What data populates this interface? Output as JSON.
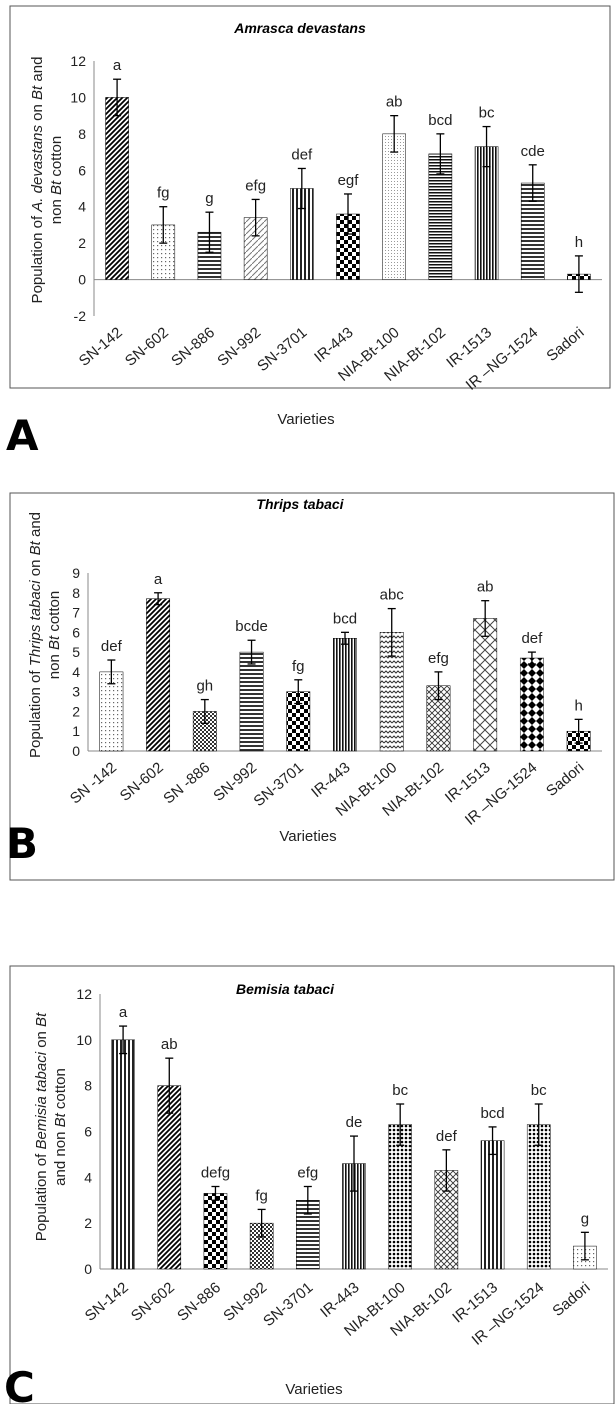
{
  "chart_data": [
    {
      "type": "bar",
      "panel": "A",
      "title": "Amrasca devastans",
      "ylabel_parts": [
        {
          "text": "Population of ",
          "italic": false
        },
        {
          "text": "A. devastans",
          "italic": true
        },
        {
          "text": " on ",
          "italic": false
        },
        {
          "text": "Bt",
          "italic": true
        },
        {
          "text": " and",
          "italic": false
        }
      ],
      "ylabel_parts2": [
        {
          "text": "non ",
          "italic": false
        },
        {
          "text": "Bt",
          "italic": true
        },
        {
          "text": " cotton",
          "italic": false
        }
      ],
      "xlabel": "Varieties",
      "ylim": [
        -2,
        12
      ],
      "yticks": [
        -2,
        0,
        2,
        4,
        6,
        8,
        10,
        12
      ],
      "categories": [
        "SN-142",
        "SN-602",
        "SN-886",
        "SN-992",
        "SN-3701",
        "IR-443",
        "NIA-Bt-100",
        "NIA-Bt-102",
        "IR-1513",
        "IR –NG-1524",
        "Sadori"
      ],
      "values": [
        10.0,
        3.0,
        2.6,
        3.4,
        5.0,
        3.6,
        8.0,
        6.9,
        7.3,
        5.3,
        0.3
      ],
      "errors": [
        1.0,
        1.0,
        1.1,
        1.0,
        1.1,
        1.1,
        1.0,
        1.1,
        1.1,
        1.0,
        1.0
      ],
      "letters": [
        "a",
        "fg",
        "g",
        "efg",
        "def",
        "egf",
        "ab",
        "bcd",
        "bc",
        "cde",
        "h"
      ],
      "patterns": [
        "diag-dense",
        "dots",
        "hlines",
        "diag-light",
        "vlines",
        "checker",
        "dots-fine",
        "hlines-dense",
        "vlines-dense",
        "hlines",
        "checker"
      ],
      "grid": false,
      "legend": "none"
    },
    {
      "type": "bar",
      "panel": "B",
      "title": "Thrips tabaci",
      "ylabel_parts": [
        {
          "text": "Population of ",
          "italic": false
        },
        {
          "text": "Thrips tabaci",
          "italic": true
        },
        {
          "text": " on ",
          "italic": false
        },
        {
          "text": "Bt",
          "italic": true
        },
        {
          "text": " and",
          "italic": false
        }
      ],
      "ylabel_parts2": [
        {
          "text": "non ",
          "italic": false
        },
        {
          "text": "Bt",
          "italic": true
        },
        {
          "text": " cotton",
          "italic": false
        }
      ],
      "xlabel": "Varieties",
      "ylim": [
        0,
        9
      ],
      "yticks": [
        0,
        1,
        2,
        3,
        4,
        5,
        6,
        7,
        8,
        9
      ],
      "categories": [
        "SN -142",
        "SN-602",
        "SN -886",
        "SN-992",
        "SN-3701",
        "IR-443",
        "NIA-Bt-100",
        "NIA-Bt-102",
        "IR-1513",
        "IR –NG-1524",
        "Sadori"
      ],
      "values": [
        4.0,
        7.7,
        2.0,
        5.0,
        3.0,
        5.7,
        6.0,
        3.3,
        6.7,
        4.7,
        1.0
      ],
      "errors": [
        0.6,
        0.3,
        0.6,
        0.6,
        0.6,
        0.3,
        1.2,
        0.7,
        0.9,
        0.3,
        0.6
      ],
      "letters": [
        "def",
        "a",
        "gh",
        "bcde",
        "fg",
        "bcd",
        "abc",
        "efg",
        "ab",
        "def",
        "h"
      ],
      "patterns": [
        "dots",
        "diag-dense",
        "checker-fine",
        "hlines",
        "checker",
        "vlines-dense",
        "waves",
        "crosshatch",
        "diag-cross",
        "diamond",
        "checker"
      ],
      "grid": false,
      "legend": "none"
    },
    {
      "type": "bar",
      "panel": "C",
      "title": "Bemisia tabaci",
      "ylabel_parts": [
        {
          "text": "Population of ",
          "italic": false
        },
        {
          "text": "Bemisia tabaci",
          "italic": true
        },
        {
          "text": " on ",
          "italic": false
        },
        {
          "text": "Bt",
          "italic": true
        }
      ],
      "ylabel_parts2": [
        {
          "text": "and non ",
          "italic": false
        },
        {
          "text": "Bt",
          "italic": true
        },
        {
          "text": " cotton",
          "italic": false
        }
      ],
      "xlabel": "Varieties",
      "ylim": [
        0,
        12
      ],
      "yticks": [
        0,
        2,
        4,
        6,
        8,
        10,
        12
      ],
      "categories": [
        "SN-142",
        "SN-602",
        "SN-886",
        "SN-992",
        "SN-3701",
        "IR-443",
        "NIA-Bt-100",
        "NIA-Bt-102",
        "IR-1513",
        "IR –NG-1524",
        "Sadori"
      ],
      "values": [
        10.0,
        8.0,
        3.3,
        2.0,
        3.0,
        4.6,
        6.3,
        4.3,
        5.6,
        6.3,
        1.0
      ],
      "errors": [
        0.6,
        1.2,
        0.3,
        0.6,
        0.6,
        1.2,
        0.9,
        0.9,
        0.6,
        0.9,
        0.6
      ],
      "letters": [
        "a",
        "ab",
        "defg",
        "fg",
        "efg",
        "de",
        "bc",
        "def",
        "bcd",
        "bc",
        "g"
      ],
      "patterns": [
        "vlines",
        "diag-dense",
        "checker",
        "checker-fine",
        "hlines",
        "vlines-dense",
        "dots-dense",
        "crosshatch",
        "vlines",
        "dots-dense",
        "dots"
      ],
      "grid": false,
      "legend": "none"
    }
  ]
}
